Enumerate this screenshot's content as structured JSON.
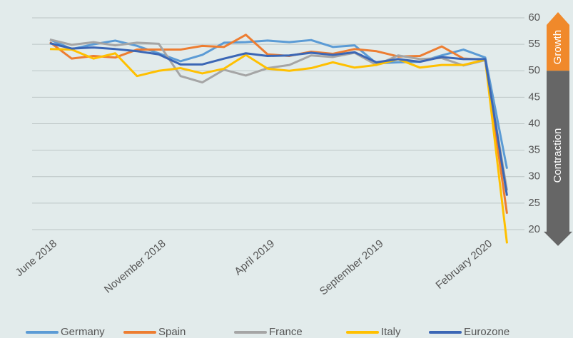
{
  "chart_data": {
    "type": "line",
    "categories": [
      "June 2018",
      null,
      null,
      null,
      null,
      "November 2018",
      null,
      null,
      null,
      null,
      "April 2019",
      null,
      null,
      null,
      null,
      "September 2019",
      null,
      null,
      null,
      null,
      "February 2020",
      null
    ],
    "series": [
      {
        "name": "Germany",
        "color": "#5b9bd5",
        "values": [
          55.9,
          54.1,
          55.0,
          55.7,
          54.7,
          53.3,
          51.8,
          53.0,
          55.3,
          55.4,
          55.7,
          55.4,
          55.8,
          54.5,
          54.8,
          51.4,
          51.6,
          51.7,
          52.9,
          54.0,
          52.5,
          31.5
        ]
      },
      {
        "name": "Spain",
        "color": "#ed7d31",
        "values": [
          55.4,
          52.3,
          52.8,
          52.5,
          54.0,
          54.0,
          54.0,
          54.7,
          54.5,
          56.8,
          53.1,
          52.8,
          53.6,
          53.2,
          54.1,
          53.7,
          52.7,
          52.8,
          54.6,
          52.3,
          52.1,
          23.0
        ]
      },
      {
        "name": "France",
        "color": "#a5a5a5",
        "values": [
          55.9,
          54.9,
          55.4,
          54.8,
          55.3,
          55.1,
          49.0,
          47.8,
          50.2,
          49.1,
          50.5,
          51.1,
          52.9,
          52.6,
          53.4,
          51.1,
          52.9,
          52.2,
          52.4,
          51.0,
          52.0,
          27.4
        ]
      },
      {
        "name": "Italy",
        "color": "#ffc000",
        "values": [
          54.1,
          54.0,
          52.3,
          53.3,
          49.0,
          50.0,
          50.5,
          49.5,
          50.4,
          53.0,
          50.4,
          50.0,
          50.5,
          51.6,
          50.6,
          51.1,
          52.2,
          50.6,
          51.1,
          51.1,
          52.1,
          17.4
        ]
      },
      {
        "name": "Eurozone",
        "color": "#3b66b5",
        "values": [
          55.2,
          54.2,
          54.4,
          54.1,
          53.7,
          53.1,
          51.2,
          51.2,
          52.3,
          53.3,
          52.8,
          52.9,
          53.4,
          53.0,
          53.5,
          51.6,
          52.2,
          51.7,
          52.6,
          52.2,
          52.2,
          26.4
        ]
      }
    ],
    "ylim": [
      15,
      62
    ],
    "yticks": [
      20,
      25,
      30,
      35,
      40,
      45,
      50,
      55,
      60
    ],
    "grid": true,
    "annotations": [
      "Growth",
      "Contraction"
    ]
  }
}
